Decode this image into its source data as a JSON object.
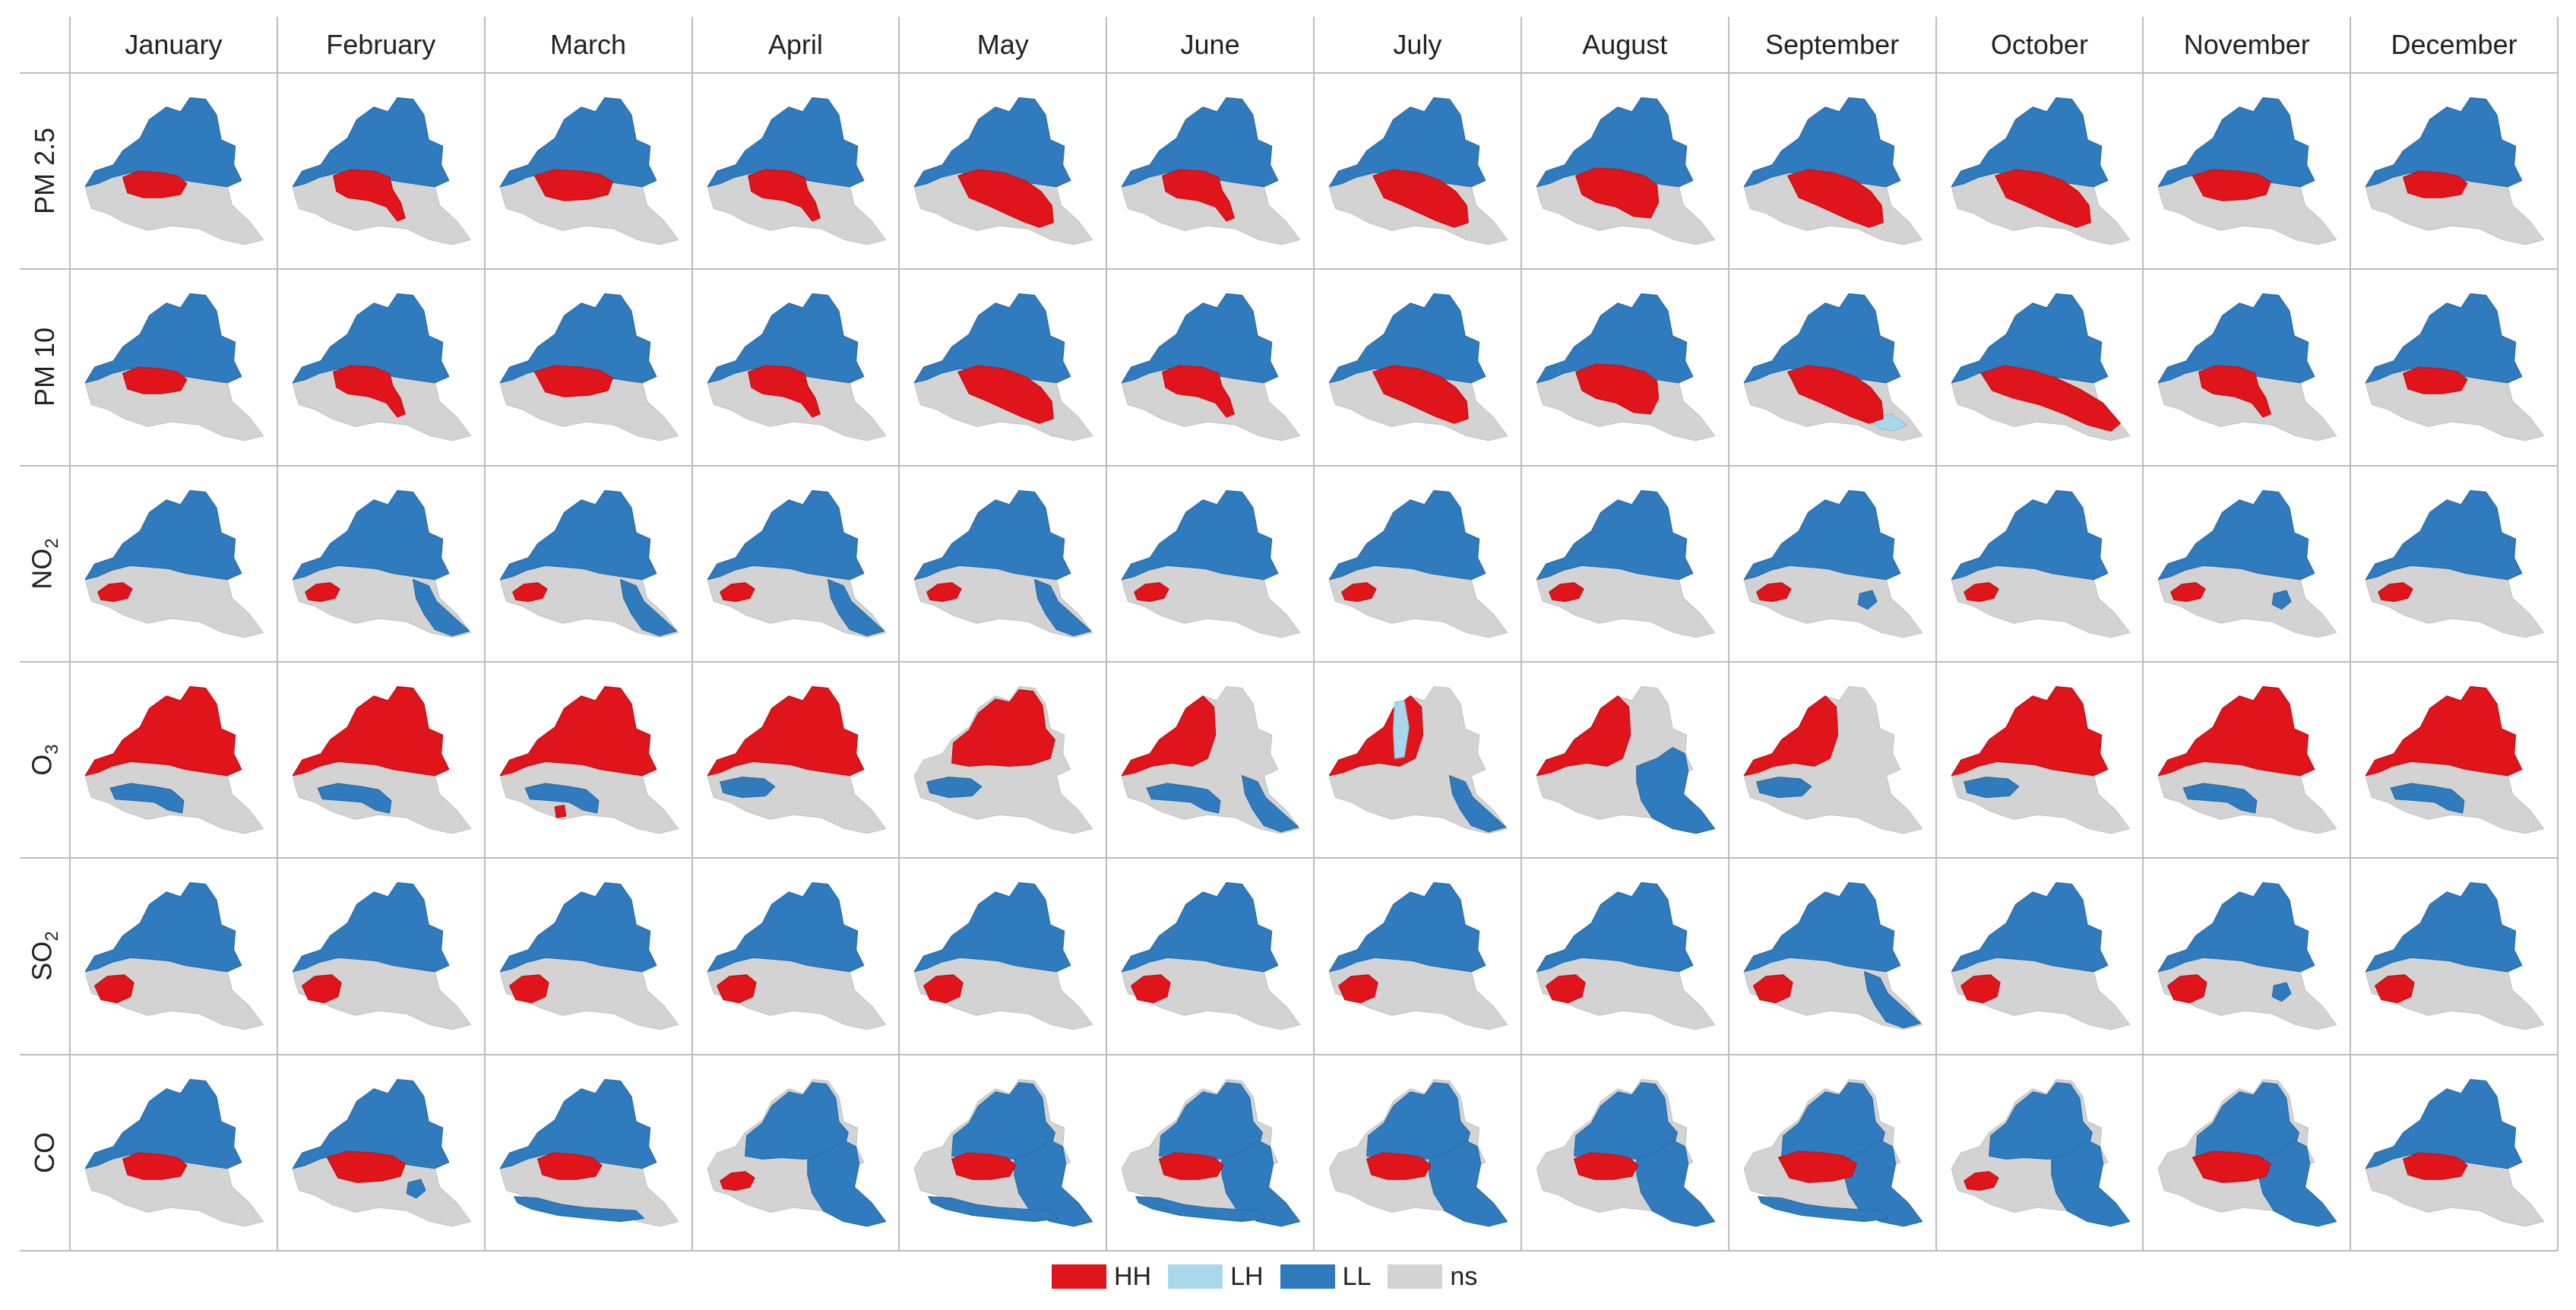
{
  "months": [
    "January",
    "February",
    "March",
    "April",
    "May",
    "June",
    "July",
    "August",
    "September",
    "October",
    "November",
    "December"
  ],
  "pollutants": [
    {
      "label": "PM 2.5",
      "base": "",
      "sub": ""
    },
    {
      "label": "PM 10",
      "base": "",
      "sub": ""
    },
    {
      "label": "",
      "base": "NO",
      "sub": "2"
    },
    {
      "label": "",
      "base": "O",
      "sub": "3"
    },
    {
      "label": "",
      "base": "SO",
      "sub": "2"
    },
    {
      "label": "CO",
      "base": "",
      "sub": ""
    }
  ],
  "legend": [
    {
      "key": "HH",
      "label": "HH",
      "color": "#e0141b"
    },
    {
      "key": "LH",
      "label": "LH",
      "color": "#a8d8ea"
    },
    {
      "key": "LL",
      "label": "LL",
      "color": "#2f7bbd"
    },
    {
      "key": "ns",
      "label": "ns",
      "color": "#d3d3d3"
    }
  ],
  "map_pattern": {
    "PM 2.5": [
      {
        "north": "LL",
        "hh": "center-small",
        "extra": []
      },
      {
        "north": "LL",
        "hh": "center-tail",
        "extra": []
      },
      {
        "north": "LL",
        "hh": "center-medium",
        "extra": []
      },
      {
        "north": "LL",
        "hh": "center-tail",
        "extra": []
      },
      {
        "north": "LL",
        "hh": "center-south-large",
        "extra": []
      },
      {
        "north": "LL",
        "hh": "center-tail",
        "extra": []
      },
      {
        "north": "LL",
        "hh": "center-south-large",
        "extra": []
      },
      {
        "north": "LL",
        "hh": "center-large",
        "extra": []
      },
      {
        "north": "LL",
        "hh": "center-south-large",
        "extra": []
      },
      {
        "north": "LL",
        "hh": "center-south-large",
        "extra": []
      },
      {
        "north": "LL",
        "hh": "center-medium",
        "extra": []
      },
      {
        "north": "LL",
        "hh": "center-small",
        "extra": []
      }
    ],
    "PM 10": [
      {
        "north": "LL",
        "hh": "center-small",
        "extra": []
      },
      {
        "north": "LL",
        "hh": "center-tail",
        "extra": []
      },
      {
        "north": "LL",
        "hh": "center-medium",
        "extra": []
      },
      {
        "north": "LL",
        "hh": "center-tail",
        "extra": []
      },
      {
        "north": "LL",
        "hh": "center-south-large",
        "extra": []
      },
      {
        "north": "LL",
        "hh": "center-tail",
        "extra": []
      },
      {
        "north": "LL",
        "hh": "center-south-large",
        "extra": []
      },
      {
        "north": "LL",
        "hh": "center-large",
        "extra": []
      },
      {
        "north": "LL",
        "hh": "center-south-large",
        "extra": [
          "LH-se"
        ]
      },
      {
        "north": "LL",
        "hh": "band-east",
        "extra": []
      },
      {
        "north": "LL",
        "hh": "center-tail",
        "extra": []
      },
      {
        "north": "LL",
        "hh": "center-small",
        "extra": []
      }
    ],
    "NO2": [
      {
        "north": "LL",
        "hh": "west-small",
        "extra": []
      },
      {
        "north": "LL",
        "hh": "west-small",
        "extra": [
          "LL-east-strip"
        ]
      },
      {
        "north": "LL",
        "hh": "west-small",
        "extra": [
          "LL-east-strip"
        ]
      },
      {
        "north": "LL",
        "hh": "west-small",
        "extra": [
          "LL-east-strip"
        ]
      },
      {
        "north": "LL",
        "hh": "west-small",
        "extra": [
          "LL-east-strip"
        ]
      },
      {
        "north": "LL",
        "hh": "west-small",
        "extra": []
      },
      {
        "north": "LL",
        "hh": "west-small",
        "extra": []
      },
      {
        "north": "LL",
        "hh": "west-small",
        "extra": []
      },
      {
        "north": "LL",
        "hh": "west-small",
        "extra": [
          "LL-east-dot"
        ]
      },
      {
        "north": "LL",
        "hh": "west-small",
        "extra": []
      },
      {
        "north": "LL",
        "hh": "west-small",
        "extra": [
          "LL-east-dot"
        ]
      },
      {
        "north": "LL",
        "hh": "west-small",
        "extra": []
      }
    ],
    "O3": [
      {
        "north": "HH",
        "hh": "",
        "extra": [
          "LL-center-band"
        ]
      },
      {
        "north": "HH",
        "hh": "",
        "extra": [
          "LL-center-band"
        ]
      },
      {
        "north": "HH",
        "hh": "",
        "extra": [
          "LL-center-band",
          "HH-south-dot"
        ]
      },
      {
        "north": "HH",
        "hh": "",
        "extra": [
          "LL-west-band"
        ]
      },
      {
        "north": "HH-partial",
        "hh": "",
        "extra": [
          "LL-west-band"
        ]
      },
      {
        "north": "HH-west",
        "hh": "",
        "extra": [
          "LL-center-band",
          "LL-east-strip"
        ]
      },
      {
        "north": "HH-west",
        "hh": "",
        "extra": [
          "LH-north-spike",
          "LL-east-strip"
        ]
      },
      {
        "north": "HH-west",
        "hh": "",
        "extra": [
          "LL-east-big"
        ]
      },
      {
        "north": "HH-west",
        "hh": "",
        "extra": [
          "LL-west-band"
        ]
      },
      {
        "north": "HH",
        "hh": "",
        "extra": [
          "LL-west-band"
        ]
      },
      {
        "north": "HH",
        "hh": "",
        "extra": [
          "LL-center-band"
        ]
      },
      {
        "north": "HH",
        "hh": "",
        "extra": [
          "LL-center-band"
        ]
      }
    ],
    "SO2": [
      {
        "north": "LL",
        "hh": "southwest",
        "extra": []
      },
      {
        "north": "LL",
        "hh": "southwest",
        "extra": []
      },
      {
        "north": "LL",
        "hh": "southwest",
        "extra": []
      },
      {
        "north": "LL",
        "hh": "southwest",
        "extra": []
      },
      {
        "north": "LL",
        "hh": "southwest",
        "extra": []
      },
      {
        "north": "LL",
        "hh": "southwest",
        "extra": []
      },
      {
        "north": "LL",
        "hh": "southwest",
        "extra": []
      },
      {
        "north": "LL",
        "hh": "southwest",
        "extra": []
      },
      {
        "north": "LL",
        "hh": "southwest",
        "extra": [
          "LL-east-strip"
        ]
      },
      {
        "north": "LL",
        "hh": "southwest",
        "extra": []
      },
      {
        "north": "LL",
        "hh": "southwest",
        "extra": [
          "LL-east-dot"
        ]
      },
      {
        "north": "LL",
        "hh": "southwest",
        "extra": []
      }
    ],
    "CO": [
      {
        "north": "LL",
        "hh": "center-small",
        "extra": []
      },
      {
        "north": "LL",
        "hh": "center-medium",
        "extra": [
          "LL-east-dot"
        ]
      },
      {
        "north": "LL",
        "hh": "center-small",
        "extra": [
          "LL-south-band"
        ]
      },
      {
        "north": "LL-east",
        "hh": "west-small",
        "extra": [
          "LL-east-big"
        ]
      },
      {
        "north": "LL-east",
        "hh": "center-small",
        "extra": [
          "LL-east-big",
          "LL-south-band"
        ]
      },
      {
        "north": "LL-east",
        "hh": "center-small",
        "extra": [
          "LL-east-big",
          "LL-south-band"
        ]
      },
      {
        "north": "LL-east",
        "hh": "center-small",
        "extra": [
          "LL-east-big"
        ]
      },
      {
        "north": "LL-east",
        "hh": "center-small",
        "extra": [
          "LL-east-big"
        ]
      },
      {
        "north": "LL-east",
        "hh": "center-medium",
        "extra": [
          "LL-east-big",
          "LL-south-band"
        ]
      },
      {
        "north": "LL-east",
        "hh": "west-small",
        "extra": [
          "LL-east-big"
        ]
      },
      {
        "north": "LL-east",
        "hh": "center-medium",
        "extra": [
          "LL-east-big"
        ]
      },
      {
        "north": "LL",
        "hh": "center-small",
        "extra": []
      }
    ]
  }
}
